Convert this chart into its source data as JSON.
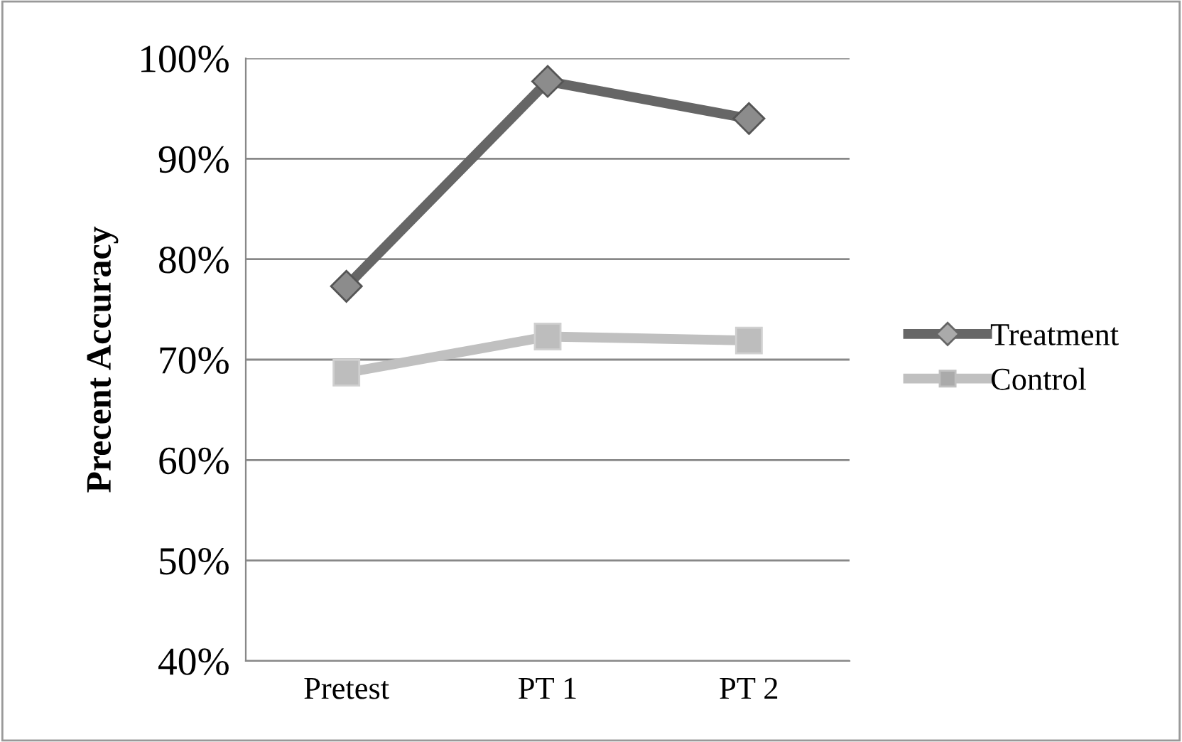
{
  "chart_data": {
    "type": "line",
    "ylabel": "Precent Accuracy",
    "categories": [
      "Pretest",
      "PT 1",
      "PT 2"
    ],
    "series": [
      {
        "name": "Treatment",
        "color": "#666666",
        "values": [
          0.773,
          0.977,
          0.94
        ],
        "marker": "diamond"
      },
      {
        "name": "Control",
        "color": "#c0c0c0",
        "values": [
          0.687,
          0.723,
          0.719
        ],
        "marker": "square"
      }
    ],
    "ylim": [
      0.4,
      1.0
    ],
    "yticks": [
      {
        "value": 0.4,
        "label": "40%"
      },
      {
        "value": 0.5,
        "label": "50%"
      },
      {
        "value": 0.6,
        "label": "60%"
      },
      {
        "value": 0.7,
        "label": "70%"
      },
      {
        "value": 0.8,
        "label": "80%"
      },
      {
        "value": 0.9,
        "label": "90%"
      },
      {
        "value": 1.0,
        "label": "100%"
      }
    ],
    "grid": "y",
    "legend": "right",
    "line_style": "solid"
  }
}
